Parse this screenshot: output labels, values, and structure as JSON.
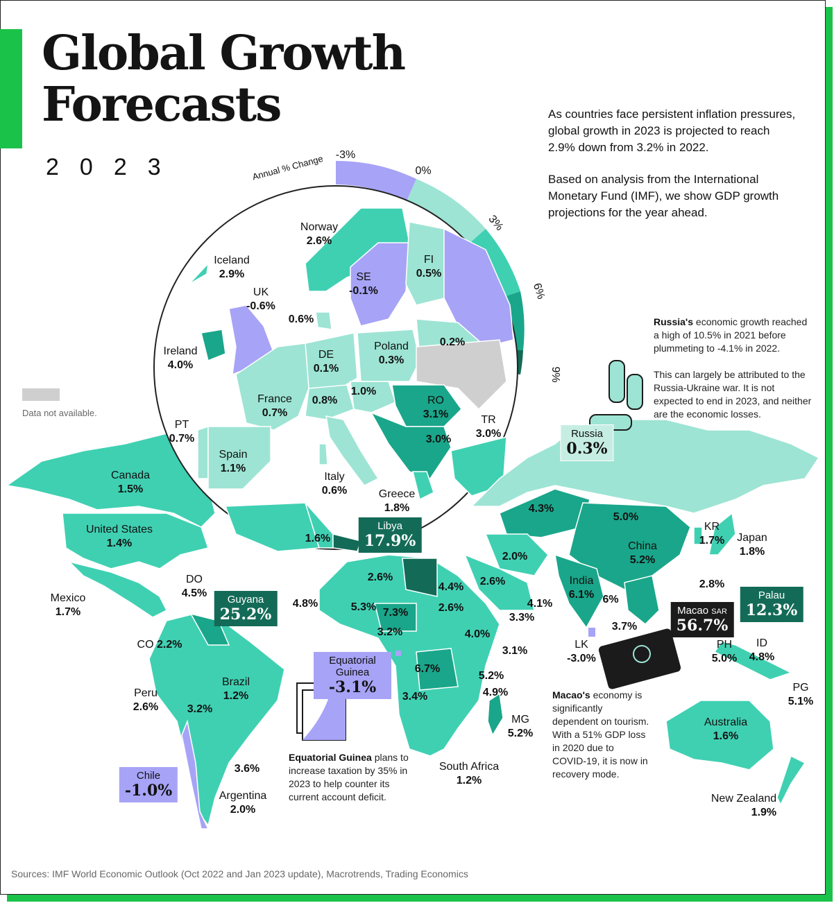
{
  "title_line1": "Global Growth",
  "title_line2": "Forecasts",
  "year": "2023",
  "intro_p1": "As countries face persistent inflation pressures, global growth in 2023 is projected to reach 2.9% down from 3.2% in 2022.",
  "intro_p2": "Based on analysis from the International Monetary Fund (IMF), we show GDP growth projections for the year ahead.",
  "legend": {
    "title": "Annual % Change",
    "ticks": [
      "-3%",
      "0%",
      "3%",
      "6%",
      "9%"
    ],
    "no_data": "Data not available."
  },
  "colors": {
    "negative": "#a7a3f6",
    "low": "#9de4d4",
    "mid": "#3fd0b2",
    "high": "#1aa68a",
    "very_high": "#136b57",
    "no_data": "#cfcfcf",
    "accent": "#1bc24a"
  },
  "europe": {
    "iceland": {
      "name": "Iceland",
      "value": "2.9%"
    },
    "norway": {
      "name": "Norway",
      "value": "2.6%"
    },
    "se": {
      "name": "SE",
      "value": "-0.1%"
    },
    "fi": {
      "name": "FI",
      "value": "0.5%"
    },
    "uk": {
      "name": "UK",
      "value": "-0.6%"
    },
    "ireland": {
      "name": "Ireland",
      "value": "4.0%"
    },
    "dk_value": "0.6%",
    "baltic_value": "0.2%",
    "de": {
      "name": "DE",
      "value": "0.1%"
    },
    "poland": {
      "name": "Poland",
      "value": "0.3%"
    },
    "france": {
      "name": "France",
      "value": "0.7%"
    },
    "benelux_value": "0.8%",
    "central_value": "1.0%",
    "ro": {
      "name": "RO",
      "value": "3.1%"
    },
    "balkans_value": "3.0%",
    "pt": {
      "name": "PT",
      "value": "0.7%"
    },
    "spain": {
      "name": "Spain",
      "value": "1.1%"
    },
    "italy": {
      "name": "Italy",
      "value": "0.6%"
    },
    "greece": {
      "name": "Greece",
      "value": "1.8%"
    },
    "tr": {
      "name": "TR",
      "value": "3.0%"
    },
    "na_africa_value": "1.6%"
  },
  "world": {
    "canada": {
      "name": "Canada",
      "value": "1.5%"
    },
    "us": {
      "name": "United States",
      "value": "1.4%"
    },
    "mexico": {
      "name": "Mexico",
      "value": "1.7%"
    },
    "do": {
      "name": "DO",
      "value": "4.5%"
    },
    "co": {
      "name": "CO",
      "value": "2.2%"
    },
    "peru": {
      "name": "Peru",
      "value": "2.6%"
    },
    "brazil": {
      "name": "Brazil",
      "value": "1.2%"
    },
    "bolivia_value": "3.2%",
    "uruguay_value": "3.6%",
    "argentina": {
      "name": "Argentina",
      "value": "2.0%"
    },
    "russia": {
      "name": "Russia",
      "value": "0.3%"
    },
    "kz_value": "4.3%",
    "mongolia_value": "5.0%",
    "china": {
      "name": "China",
      "value": "5.2%"
    },
    "kr": {
      "name": "KR",
      "value": "1.7%"
    },
    "japan": {
      "name": "Japan",
      "value": "1.8%"
    },
    "iran_value": "2.0%",
    "saudi_value": "2.6%",
    "oman_value": "4.1%",
    "yemen_value": "3.3%",
    "india": {
      "name": "India",
      "value": "6.1%"
    },
    "seasia_value": "6%",
    "th_value": "3.7%",
    "tw_value": "2.8%",
    "lk": {
      "name": "LK",
      "value": "-3.0%"
    },
    "ph": {
      "name": "PH",
      "value": "5.0%"
    },
    "id": {
      "name": "ID",
      "value": "4.8%"
    },
    "pg": {
      "name": "PG",
      "value": "5.1%"
    },
    "australia": {
      "name": "Australia",
      "value": "1.6%"
    },
    "nz": {
      "name": "New Zealand",
      "value": "1.9%"
    },
    "west_africa_value": "4.8%",
    "algeria_value": "2.6%",
    "mali_value": "5.3%",
    "niger_value": "7.3%",
    "nigeria_value": "3.2%",
    "egypt_value": "4.4%",
    "sudan_value": "2.6%",
    "ethiopia_value": "4.0%",
    "somalia_value": "3.1%",
    "drc_value": "6.7%",
    "kenya_value": "5.2%",
    "tanzania_value": "4.9%",
    "angola_value": "3.4%",
    "mg": {
      "name": "MG",
      "value": "5.2%"
    },
    "south_africa": {
      "name": "South Africa",
      "value": "1.2%"
    }
  },
  "callouts": {
    "libya": {
      "name": "Libya",
      "value": "17.9%"
    },
    "guyana": {
      "name": "Guyana",
      "value": "25.2%"
    },
    "eq_guinea": {
      "name": "Equatorial Guinea",
      "value": "-3.1%"
    },
    "chile": {
      "name": "Chile",
      "value": "-1.0%"
    },
    "macao": {
      "name": "Macao",
      "suffix": "SAR",
      "value": "56.7%"
    },
    "palau": {
      "name": "Palau",
      "value": "12.3%"
    }
  },
  "notes": {
    "russia_bold": "Russia's",
    "russia_text": " economic growth reached a high of 10.5% in 2021 before plummeting to -4.1% in 2022.",
    "russia_text2": "This can largely be attributed to the Russia-Ukraine war. It is not expected to end in 2023, and neither are the economic losses.",
    "macao_bold": "Macao's",
    "macao_text": " economy is significantly dependent on tourism. With a 51% GDP loss in 2020 due to COVID-19, it is now in recovery mode.",
    "eqg_bold": "Equatorial Guinea",
    "eqg_text": " plans to increase taxation by 35% in 2023 to help counter its current account deficit."
  },
  "sources": "Sources: IMF World Economic Outlook (Oct 2022 and Jan 2023 update), Macrotrends, Trading Economics"
}
